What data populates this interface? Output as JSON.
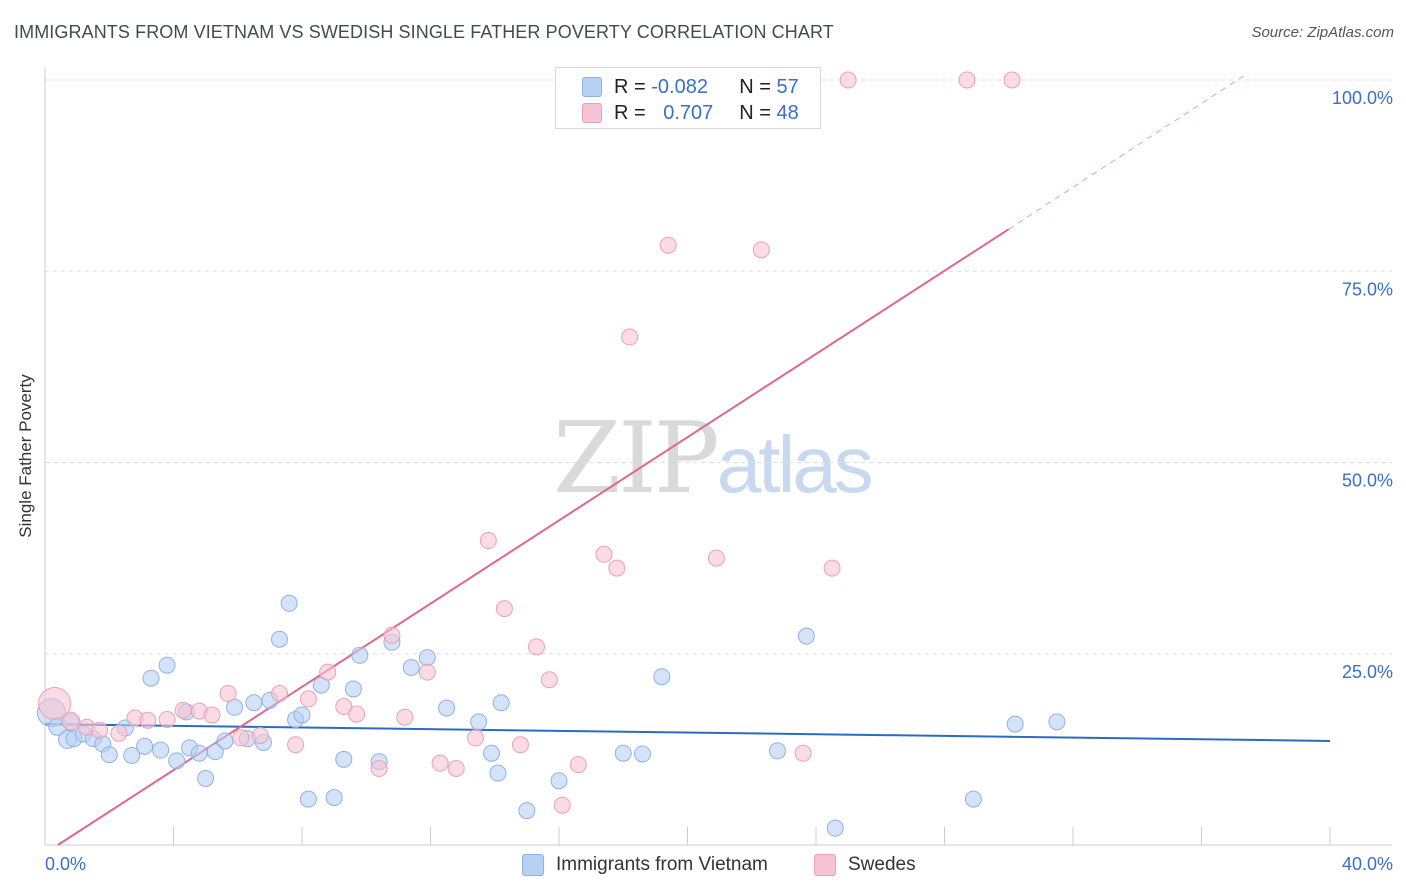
{
  "title": "IMMIGRANTS FROM VIETNAM VS SWEDISH SINGLE FATHER POVERTY CORRELATION CHART",
  "source": "Source: ZipAtlas.com",
  "watermark": {
    "zip": "ZIP",
    "atlas": "atlas"
  },
  "legend": {
    "rows": [
      {
        "r_label": "R = ",
        "r_value": "-0.082",
        "n_label": "N = ",
        "n_value": "57"
      },
      {
        "r_label": "R = ",
        "r_value": "0.707",
        "n_label": "N = ",
        "n_value": "48"
      }
    ]
  },
  "bottom_legend": [
    "Immigrants from Vietnam",
    "Swedes"
  ],
  "colors": {
    "blue_fill": "#b8d0f2",
    "blue_stroke": "#8fb2e6",
    "blue_line": "#2a6bc4",
    "pink_fill": "#f6c4d4",
    "pink_stroke": "#ee9fb8",
    "pink_line": "#e06690",
    "tick_label": "#3a6fc4",
    "grid": "#dddddd"
  },
  "chart_data": {
    "type": "scatter",
    "title": "IMMIGRANTS FROM VIETNAM VS SWEDISH SINGLE FATHER POVERTY CORRELATION CHART",
    "xlabel": "",
    "ylabel": "Single Father Poverty",
    "xlim": [
      0,
      40
    ],
    "ylim": [
      0,
      102
    ],
    "x_tick_labels": [
      "0.0%",
      "40.0%"
    ],
    "y_tick_labels": [
      "25.0%",
      "50.0%",
      "75.0%",
      "100.0%"
    ],
    "y_ticks": [
      25,
      50,
      75,
      100
    ],
    "grid": "horizontal dashed",
    "legend_position": "top-center",
    "series": [
      {
        "name": "Immigrants from Vietnam",
        "r": -0.082,
        "n": 57,
        "trend": {
          "x": [
            0,
            40
          ],
          "y": [
            15.8,
            13.6
          ],
          "style": "solid"
        },
        "points": [
          [
            0.2,
            17.3,
            14
          ],
          [
            0.4,
            15.5,
            9
          ],
          [
            0.7,
            13.8,
            9
          ],
          [
            0.9,
            13.9,
            8
          ],
          [
            1.2,
            14.5,
            8
          ],
          [
            1.5,
            13.9,
            8
          ],
          [
            1.8,
            13.2,
            8
          ],
          [
            2.0,
            11.8,
            8
          ],
          [
            2.5,
            15.3,
            8
          ],
          [
            2.7,
            11.7,
            8
          ],
          [
            3.1,
            12.9,
            8
          ],
          [
            3.3,
            21.8,
            8
          ],
          [
            3.6,
            12.4,
            8
          ],
          [
            3.8,
            23.5,
            8
          ],
          [
            4.1,
            11.0,
            8
          ],
          [
            4.4,
            17.4,
            8
          ],
          [
            4.5,
            12.7,
            8
          ],
          [
            4.8,
            12.0,
            8
          ],
          [
            5.0,
            8.7,
            8
          ],
          [
            5.3,
            12.2,
            8
          ],
          [
            5.6,
            13.6,
            8
          ],
          [
            5.9,
            18.0,
            8
          ],
          [
            6.3,
            13.9,
            8
          ],
          [
            6.5,
            18.6,
            8
          ],
          [
            6.8,
            13.4,
            8
          ],
          [
            7.0,
            18.9,
            8
          ],
          [
            7.3,
            26.9,
            8
          ],
          [
            7.6,
            31.6,
            8
          ],
          [
            7.8,
            16.4,
            8
          ],
          [
            8.0,
            17.0,
            8
          ],
          [
            8.2,
            6.0,
            8
          ],
          [
            8.6,
            20.9,
            8
          ],
          [
            9.0,
            6.2,
            8
          ],
          [
            9.3,
            11.2,
            8
          ],
          [
            9.6,
            20.4,
            8
          ],
          [
            9.8,
            24.8,
            8
          ],
          [
            10.4,
            10.9,
            8
          ],
          [
            10.8,
            26.5,
            8
          ],
          [
            11.4,
            23.2,
            8
          ],
          [
            11.9,
            24.5,
            8
          ],
          [
            12.5,
            17.9,
            8
          ],
          [
            13.5,
            16.1,
            8
          ],
          [
            13.9,
            12.0,
            8
          ],
          [
            14.1,
            9.4,
            8
          ],
          [
            14.2,
            18.6,
            8
          ],
          [
            15.0,
            4.5,
            8
          ],
          [
            16.0,
            8.4,
            8
          ],
          [
            18.0,
            12.0,
            8
          ],
          [
            18.6,
            11.9,
            8
          ],
          [
            19.2,
            22.0,
            8
          ],
          [
            22.8,
            12.3,
            8
          ],
          [
            23.7,
            27.3,
            8
          ],
          [
            24.6,
            2.2,
            8
          ],
          [
            28.9,
            6.0,
            8
          ],
          [
            30.2,
            15.8,
            8
          ],
          [
            31.5,
            16.1,
            8
          ],
          [
            0.8,
            16.1,
            8
          ]
        ]
      },
      {
        "name": "Swedes",
        "r": 0.707,
        "n": 48,
        "trend": {
          "x": [
            0.4,
            30.0
          ],
          "y": [
            0.0,
            80.5
          ],
          "dashed_to": [
            37.3,
            100.5
          ],
          "style": "solid then dashed"
        },
        "points": [
          [
            0.3,
            18.5,
            16
          ],
          [
            0.8,
            16.2,
            9
          ],
          [
            1.3,
            15.4,
            8
          ],
          [
            1.7,
            15.0,
            8
          ],
          [
            2.3,
            14.6,
            8
          ],
          [
            2.8,
            16.6,
            8
          ],
          [
            3.2,
            16.3,
            8
          ],
          [
            3.8,
            16.4,
            8
          ],
          [
            4.3,
            17.6,
            8
          ],
          [
            4.8,
            17.5,
            8
          ],
          [
            5.2,
            17.0,
            8
          ],
          [
            5.7,
            19.8,
            8
          ],
          [
            6.1,
            14.0,
            8
          ],
          [
            6.7,
            14.3,
            8
          ],
          [
            7.3,
            19.8,
            8
          ],
          [
            7.8,
            13.1,
            8
          ],
          [
            8.2,
            19.1,
            8
          ],
          [
            8.8,
            22.6,
            8
          ],
          [
            9.3,
            18.1,
            8
          ],
          [
            9.7,
            17.1,
            8
          ],
          [
            10.4,
            10.0,
            8
          ],
          [
            10.8,
            27.4,
            8
          ],
          [
            11.2,
            16.7,
            8
          ],
          [
            11.9,
            22.6,
            8
          ],
          [
            12.3,
            10.7,
            8
          ],
          [
            12.8,
            10.0,
            8
          ],
          [
            13.4,
            14.0,
            8
          ],
          [
            13.8,
            39.8,
            8
          ],
          [
            14.3,
            30.9,
            8
          ],
          [
            14.8,
            13.1,
            8
          ],
          [
            15.3,
            25.9,
            8
          ],
          [
            15.7,
            21.6,
            8
          ],
          [
            16.1,
            5.2,
            8
          ],
          [
            16.6,
            10.5,
            8
          ],
          [
            17.4,
            38.0,
            8
          ],
          [
            17.8,
            36.2,
            8
          ],
          [
            18.2,
            66.4,
            8
          ],
          [
            19.4,
            78.4,
            8
          ],
          [
            20.9,
            37.5,
            8
          ],
          [
            22.3,
            77.8,
            8
          ],
          [
            23.4,
            100.0,
            8
          ],
          [
            23.6,
            12.0,
            8
          ],
          [
            24.5,
            36.2,
            8
          ],
          [
            25.0,
            100.0,
            8
          ],
          [
            28.7,
            100.0,
            8
          ],
          [
            30.1,
            100.0,
            8
          ],
          [
            21.8,
            100.0,
            8
          ],
          [
            18.8,
            100.0,
            8
          ]
        ]
      }
    ]
  }
}
